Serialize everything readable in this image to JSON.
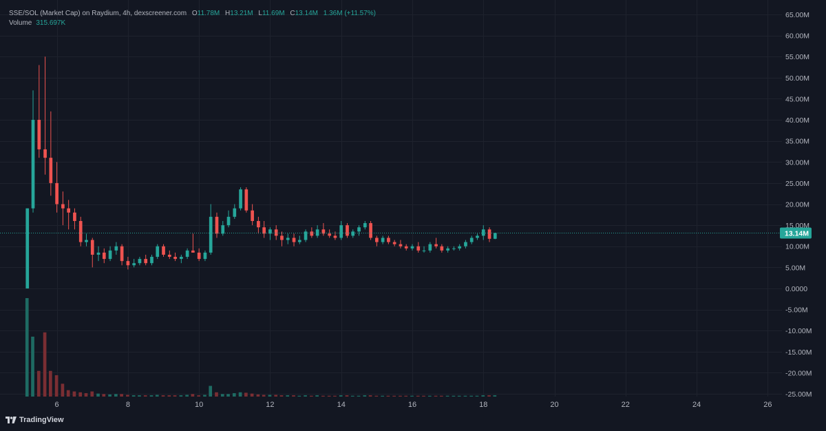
{
  "legend": {
    "symbol": "SSE/SOL (Market Cap) on Raydium, 4h, dexscreener.com",
    "o_label": "O",
    "o_value": "11.78M",
    "h_label": "H",
    "h_value": "13.21M",
    "l_label": "L",
    "l_value": "11.69M",
    "c_label": "C",
    "c_value": "13.14M",
    "change": "1.36M (+11.57%)",
    "volume_label": "Volume",
    "volume_value": "315.697K"
  },
  "last_price_label": "13.14M",
  "branding": "TradingView",
  "colors": {
    "up": "#26a69a",
    "down": "#ef5350",
    "up_volume": "#1e6b63",
    "down_volume": "#7a2e33",
    "background": "#131722",
    "grid": "#1e222d"
  },
  "chart_data": {
    "type": "candlestick",
    "y_axis_ticks": [
      "65.00M",
      "60.00M",
      "55.00M",
      "50.00M",
      "45.00M",
      "40.00M",
      "35.00M",
      "30.00M",
      "25.00M",
      "20.00M",
      "15.00M",
      "10.00M",
      "5.00M",
      "0.0000",
      "-5.00M",
      "-10.00M",
      "-15.00M",
      "-20.00M",
      "-25.00M"
    ],
    "y_axis_values": [
      65,
      60,
      55,
      50,
      45,
      40,
      35,
      30,
      25,
      20,
      15,
      10,
      5,
      0,
      -5,
      -10,
      -15,
      -20,
      -25
    ],
    "ylim": [
      -25,
      67
    ],
    "y_unit": "M",
    "x_axis_ticks": [
      "6",
      "8",
      "10",
      "12",
      "14",
      "16",
      "18",
      "20",
      "22",
      "24",
      "26"
    ],
    "x_axis_values": [
      6,
      8,
      10,
      12,
      14,
      16,
      18,
      20,
      22,
      24,
      26
    ],
    "xlim": [
      4.4,
      26.4
    ],
    "last_price": 13.14,
    "candle_width_days": 0.11,
    "candles": [
      {
        "t": 5.17,
        "o": 0.0,
        "h": 19.0,
        "l": 0.0,
        "c": 19.0
      },
      {
        "t": 5.33,
        "o": 19.0,
        "h": 47.0,
        "l": 18.0,
        "c": 40.0
      },
      {
        "t": 5.5,
        "o": 40.0,
        "h": 53.0,
        "l": 31.0,
        "c": 33.0
      },
      {
        "t": 5.67,
        "o": 33.0,
        "h": 55.0,
        "l": 27.0,
        "c": 31.0
      },
      {
        "t": 5.83,
        "o": 31.0,
        "h": 42.0,
        "l": 22.0,
        "c": 25.0
      },
      {
        "t": 6.0,
        "o": 25.0,
        "h": 30.0,
        "l": 18.0,
        "c": 20.0
      },
      {
        "t": 6.17,
        "o": 20.0,
        "h": 23.0,
        "l": 15.0,
        "c": 19.0
      },
      {
        "t": 6.33,
        "o": 19.0,
        "h": 21.0,
        "l": 14.0,
        "c": 18.0
      },
      {
        "t": 6.5,
        "o": 18.0,
        "h": 19.0,
        "l": 14.0,
        "c": 16.0
      },
      {
        "t": 6.67,
        "o": 16.0,
        "h": 17.0,
        "l": 10.0,
        "c": 11.0
      },
      {
        "t": 6.83,
        "o": 11.0,
        "h": 13.0,
        "l": 10.0,
        "c": 11.5
      },
      {
        "t": 7.0,
        "o": 11.5,
        "h": 12.0,
        "l": 5.0,
        "c": 8.0
      },
      {
        "t": 7.17,
        "o": 8.0,
        "h": 10.0,
        "l": 6.5,
        "c": 8.5
      },
      {
        "t": 7.33,
        "o": 8.5,
        "h": 9.5,
        "l": 6.0,
        "c": 7.0
      },
      {
        "t": 7.5,
        "o": 7.0,
        "h": 10.0,
        "l": 6.5,
        "c": 9.0
      },
      {
        "t": 7.67,
        "o": 9.0,
        "h": 11.0,
        "l": 8.0,
        "c": 10.0
      },
      {
        "t": 7.83,
        "o": 10.0,
        "h": 10.5,
        "l": 5.5,
        "c": 6.5
      },
      {
        "t": 8.0,
        "o": 6.5,
        "h": 7.5,
        "l": 4.5,
        "c": 5.5
      },
      {
        "t": 8.17,
        "o": 5.5,
        "h": 7.0,
        "l": 5.0,
        "c": 6.0
      },
      {
        "t": 8.33,
        "o": 6.0,
        "h": 7.5,
        "l": 5.5,
        "c": 7.0
      },
      {
        "t": 8.5,
        "o": 7.0,
        "h": 8.0,
        "l": 5.5,
        "c": 6.0
      },
      {
        "t": 8.67,
        "o": 6.0,
        "h": 8.0,
        "l": 5.5,
        "c": 7.5
      },
      {
        "t": 8.83,
        "o": 7.5,
        "h": 10.5,
        "l": 7.0,
        "c": 10.0
      },
      {
        "t": 9.0,
        "o": 10.0,
        "h": 10.5,
        "l": 7.5,
        "c": 8.0
      },
      {
        "t": 9.17,
        "o": 8.0,
        "h": 9.0,
        "l": 7.0,
        "c": 7.5
      },
      {
        "t": 9.33,
        "o": 7.5,
        "h": 8.5,
        "l": 6.5,
        "c": 7.0
      },
      {
        "t": 9.5,
        "o": 7.0,
        "h": 8.0,
        "l": 6.0,
        "c": 7.5
      },
      {
        "t": 9.67,
        "o": 7.5,
        "h": 9.5,
        "l": 7.0,
        "c": 9.0
      },
      {
        "t": 9.83,
        "o": 9.0,
        "h": 13.0,
        "l": 8.5,
        "c": 8.5
      },
      {
        "t": 10.0,
        "o": 8.5,
        "h": 9.5,
        "l": 6.5,
        "c": 7.0
      },
      {
        "t": 10.17,
        "o": 7.0,
        "h": 9.0,
        "l": 6.5,
        "c": 8.5
      },
      {
        "t": 10.33,
        "o": 8.5,
        "h": 20.0,
        "l": 8.0,
        "c": 17.0
      },
      {
        "t": 10.5,
        "o": 17.0,
        "h": 18.0,
        "l": 12.0,
        "c": 13.0
      },
      {
        "t": 10.67,
        "o": 13.0,
        "h": 16.0,
        "l": 12.5,
        "c": 15.0
      },
      {
        "t": 10.83,
        "o": 15.0,
        "h": 18.5,
        "l": 14.5,
        "c": 17.0
      },
      {
        "t": 11.0,
        "o": 17.0,
        "h": 20.0,
        "l": 16.5,
        "c": 19.0
      },
      {
        "t": 11.17,
        "o": 19.0,
        "h": 24.0,
        "l": 18.5,
        "c": 23.5
      },
      {
        "t": 11.33,
        "o": 23.5,
        "h": 24.0,
        "l": 18.0,
        "c": 18.5
      },
      {
        "t": 11.5,
        "o": 18.5,
        "h": 20.0,
        "l": 15.0,
        "c": 16.0
      },
      {
        "t": 11.67,
        "o": 16.0,
        "h": 17.0,
        "l": 13.0,
        "c": 14.5
      },
      {
        "t": 11.83,
        "o": 14.5,
        "h": 16.0,
        "l": 12.0,
        "c": 13.0
      },
      {
        "t": 12.0,
        "o": 13.0,
        "h": 14.5,
        "l": 11.5,
        "c": 14.0
      },
      {
        "t": 12.17,
        "o": 14.0,
        "h": 15.0,
        "l": 11.5,
        "c": 12.5
      },
      {
        "t": 12.33,
        "o": 12.5,
        "h": 13.5,
        "l": 10.0,
        "c": 11.5
      },
      {
        "t": 12.5,
        "o": 11.5,
        "h": 13.0,
        "l": 10.5,
        "c": 12.0
      },
      {
        "t": 12.67,
        "o": 12.0,
        "h": 13.0,
        "l": 10.0,
        "c": 11.0
      },
      {
        "t": 12.83,
        "o": 11.0,
        "h": 12.5,
        "l": 10.5,
        "c": 11.5
      },
      {
        "t": 13.0,
        "o": 11.5,
        "h": 14.0,
        "l": 11.0,
        "c": 13.5
      },
      {
        "t": 13.17,
        "o": 13.5,
        "h": 14.5,
        "l": 12.0,
        "c": 12.5
      },
      {
        "t": 13.33,
        "o": 12.5,
        "h": 15.0,
        "l": 12.0,
        "c": 14.0
      },
      {
        "t": 13.5,
        "o": 14.0,
        "h": 15.5,
        "l": 12.5,
        "c": 13.0
      },
      {
        "t": 13.67,
        "o": 13.0,
        "h": 14.0,
        "l": 12.0,
        "c": 12.5
      },
      {
        "t": 13.83,
        "o": 12.5,
        "h": 13.5,
        "l": 11.5,
        "c": 12.0
      },
      {
        "t": 14.0,
        "o": 12.0,
        "h": 16.0,
        "l": 11.5,
        "c": 15.0
      },
      {
        "t": 14.17,
        "o": 15.0,
        "h": 15.5,
        "l": 12.0,
        "c": 12.5
      },
      {
        "t": 14.33,
        "o": 12.5,
        "h": 14.0,
        "l": 12.0,
        "c": 13.5
      },
      {
        "t": 14.5,
        "o": 13.5,
        "h": 15.0,
        "l": 12.5,
        "c": 14.5
      },
      {
        "t": 14.67,
        "o": 14.5,
        "h": 16.0,
        "l": 14.0,
        "c": 15.5
      },
      {
        "t": 14.83,
        "o": 15.5,
        "h": 16.0,
        "l": 11.5,
        "c": 12.0
      },
      {
        "t": 15.0,
        "o": 12.0,
        "h": 12.5,
        "l": 10.0,
        "c": 11.0
      },
      {
        "t": 15.17,
        "o": 11.0,
        "h": 12.5,
        "l": 10.5,
        "c": 12.0
      },
      {
        "t": 15.33,
        "o": 12.0,
        "h": 12.5,
        "l": 10.5,
        "c": 11.0
      },
      {
        "t": 15.5,
        "o": 11.0,
        "h": 11.5,
        "l": 10.0,
        "c": 10.5
      },
      {
        "t": 15.67,
        "o": 10.5,
        "h": 11.5,
        "l": 9.5,
        "c": 10.0
      },
      {
        "t": 15.83,
        "o": 10.0,
        "h": 10.5,
        "l": 9.0,
        "c": 9.5
      },
      {
        "t": 16.0,
        "o": 9.5,
        "h": 10.5,
        "l": 9.0,
        "c": 10.0
      },
      {
        "t": 16.17,
        "o": 10.0,
        "h": 11.0,
        "l": 8.5,
        "c": 9.0
      },
      {
        "t": 16.33,
        "o": 9.0,
        "h": 10.0,
        "l": 8.5,
        "c": 9.0
      },
      {
        "t": 16.5,
        "o": 9.0,
        "h": 11.0,
        "l": 8.5,
        "c": 10.5
      },
      {
        "t": 16.67,
        "o": 10.5,
        "h": 12.0,
        "l": 9.5,
        "c": 10.0
      },
      {
        "t": 16.83,
        "o": 10.0,
        "h": 10.5,
        "l": 8.5,
        "c": 9.0
      },
      {
        "t": 17.0,
        "o": 9.0,
        "h": 10.0,
        "l": 8.5,
        "c": 9.5
      },
      {
        "t": 17.17,
        "o": 9.5,
        "h": 10.0,
        "l": 9.0,
        "c": 9.5
      },
      {
        "t": 17.33,
        "o": 9.5,
        "h": 10.5,
        "l": 9.0,
        "c": 10.0
      },
      {
        "t": 17.5,
        "o": 10.0,
        "h": 11.5,
        "l": 9.5,
        "c": 11.0
      },
      {
        "t": 17.67,
        "o": 11.0,
        "h": 12.5,
        "l": 10.5,
        "c": 12.0
      },
      {
        "t": 17.83,
        "o": 12.0,
        "h": 13.0,
        "l": 11.5,
        "c": 12.5
      },
      {
        "t": 18.0,
        "o": 12.5,
        "h": 15.0,
        "l": 11.5,
        "c": 14.0
      },
      {
        "t": 18.17,
        "o": 14.0,
        "h": 14.5,
        "l": 11.0,
        "c": 11.78
      },
      {
        "t": 18.33,
        "o": 11.78,
        "h": 13.21,
        "l": 11.69,
        "c": 13.14
      }
    ],
    "volume": {
      "ylim": [
        0,
        23
      ],
      "bars": [
        {
          "t": 5.17,
          "v": 23,
          "up": true
        },
        {
          "t": 5.33,
          "v": 14,
          "up": true
        },
        {
          "t": 5.5,
          "v": 6,
          "up": false
        },
        {
          "t": 5.67,
          "v": 15,
          "up": false
        },
        {
          "t": 5.83,
          "v": 6,
          "up": false
        },
        {
          "t": 6.0,
          "v": 5,
          "up": false
        },
        {
          "t": 6.17,
          "v": 3,
          "up": false
        },
        {
          "t": 6.33,
          "v": 1.5,
          "up": false
        },
        {
          "t": 6.5,
          "v": 1.2,
          "up": false
        },
        {
          "t": 6.67,
          "v": 1.0,
          "up": false
        },
        {
          "t": 6.83,
          "v": 0.8,
          "up": false
        },
        {
          "t": 7.0,
          "v": 1.2,
          "up": false
        },
        {
          "t": 7.17,
          "v": 0.7,
          "up": true
        },
        {
          "t": 7.33,
          "v": 0.6,
          "up": false
        },
        {
          "t": 7.5,
          "v": 0.5,
          "up": true
        },
        {
          "t": 7.67,
          "v": 0.6,
          "up": true
        },
        {
          "t": 7.83,
          "v": 0.6,
          "up": false
        },
        {
          "t": 8.0,
          "v": 0.4,
          "up": false
        },
        {
          "t": 8.17,
          "v": 0.3,
          "up": true
        },
        {
          "t": 8.33,
          "v": 0.3,
          "up": true
        },
        {
          "t": 8.5,
          "v": 0.3,
          "up": false
        },
        {
          "t": 8.67,
          "v": 0.3,
          "up": true
        },
        {
          "t": 8.83,
          "v": 0.4,
          "up": true
        },
        {
          "t": 9.0,
          "v": 0.3,
          "up": false
        },
        {
          "t": 9.17,
          "v": 0.3,
          "up": false
        },
        {
          "t": 9.33,
          "v": 0.3,
          "up": false
        },
        {
          "t": 9.5,
          "v": 0.3,
          "up": true
        },
        {
          "t": 9.67,
          "v": 0.4,
          "up": true
        },
        {
          "t": 9.83,
          "v": 0.6,
          "up": false
        },
        {
          "t": 10.0,
          "v": 0.3,
          "up": false
        },
        {
          "t": 10.17,
          "v": 0.4,
          "up": true
        },
        {
          "t": 10.33,
          "v": 2.5,
          "up": true
        },
        {
          "t": 10.5,
          "v": 1.0,
          "up": false
        },
        {
          "t": 10.67,
          "v": 0.6,
          "up": true
        },
        {
          "t": 10.83,
          "v": 0.6,
          "up": true
        },
        {
          "t": 11.0,
          "v": 0.8,
          "up": true
        },
        {
          "t": 11.17,
          "v": 1.0,
          "up": true
        },
        {
          "t": 11.33,
          "v": 0.9,
          "up": false
        },
        {
          "t": 11.5,
          "v": 0.7,
          "up": false
        },
        {
          "t": 11.67,
          "v": 0.5,
          "up": false
        },
        {
          "t": 11.83,
          "v": 0.4,
          "up": false
        },
        {
          "t": 12.0,
          "v": 0.4,
          "up": true
        },
        {
          "t": 12.17,
          "v": 0.4,
          "up": false
        },
        {
          "t": 12.33,
          "v": 0.3,
          "up": false
        },
        {
          "t": 12.5,
          "v": 0.3,
          "up": true
        },
        {
          "t": 12.67,
          "v": 0.3,
          "up": false
        },
        {
          "t": 12.83,
          "v": 0.2,
          "up": true
        },
        {
          "t": 13.0,
          "v": 0.3,
          "up": true
        },
        {
          "t": 13.17,
          "v": 0.2,
          "up": false
        },
        {
          "t": 13.33,
          "v": 0.3,
          "up": true
        },
        {
          "t": 13.5,
          "v": 0.2,
          "up": false
        },
        {
          "t": 13.67,
          "v": 0.2,
          "up": false
        },
        {
          "t": 13.83,
          "v": 0.2,
          "up": false
        },
        {
          "t": 14.0,
          "v": 0.3,
          "up": true
        },
        {
          "t": 14.17,
          "v": 0.3,
          "up": false
        },
        {
          "t": 14.33,
          "v": 0.2,
          "up": true
        },
        {
          "t": 14.5,
          "v": 0.2,
          "up": true
        },
        {
          "t": 14.67,
          "v": 0.3,
          "up": true
        },
        {
          "t": 14.83,
          "v": 0.3,
          "up": false
        },
        {
          "t": 15.0,
          "v": 0.2,
          "up": false
        },
        {
          "t": 15.17,
          "v": 0.2,
          "up": true
        },
        {
          "t": 15.33,
          "v": 0.2,
          "up": false
        },
        {
          "t": 15.5,
          "v": 0.2,
          "up": false
        },
        {
          "t": 15.67,
          "v": 0.2,
          "up": false
        },
        {
          "t": 15.83,
          "v": 0.2,
          "up": false
        },
        {
          "t": 16.0,
          "v": 0.2,
          "up": true
        },
        {
          "t": 16.17,
          "v": 0.2,
          "up": false
        },
        {
          "t": 16.33,
          "v": 0.2,
          "up": false
        },
        {
          "t": 16.5,
          "v": 0.2,
          "up": true
        },
        {
          "t": 16.67,
          "v": 0.2,
          "up": false
        },
        {
          "t": 16.83,
          "v": 0.2,
          "up": false
        },
        {
          "t": 17.0,
          "v": 0.2,
          "up": true
        },
        {
          "t": 17.17,
          "v": 0.2,
          "up": true
        },
        {
          "t": 17.33,
          "v": 0.2,
          "up": true
        },
        {
          "t": 17.5,
          "v": 0.2,
          "up": true
        },
        {
          "t": 17.67,
          "v": 0.2,
          "up": true
        },
        {
          "t": 17.83,
          "v": 0.2,
          "up": true
        },
        {
          "t": 18.0,
          "v": 0.3,
          "up": true
        },
        {
          "t": 18.17,
          "v": 0.3,
          "up": false
        },
        {
          "t": 18.33,
          "v": 0.3,
          "up": true
        }
      ]
    }
  }
}
